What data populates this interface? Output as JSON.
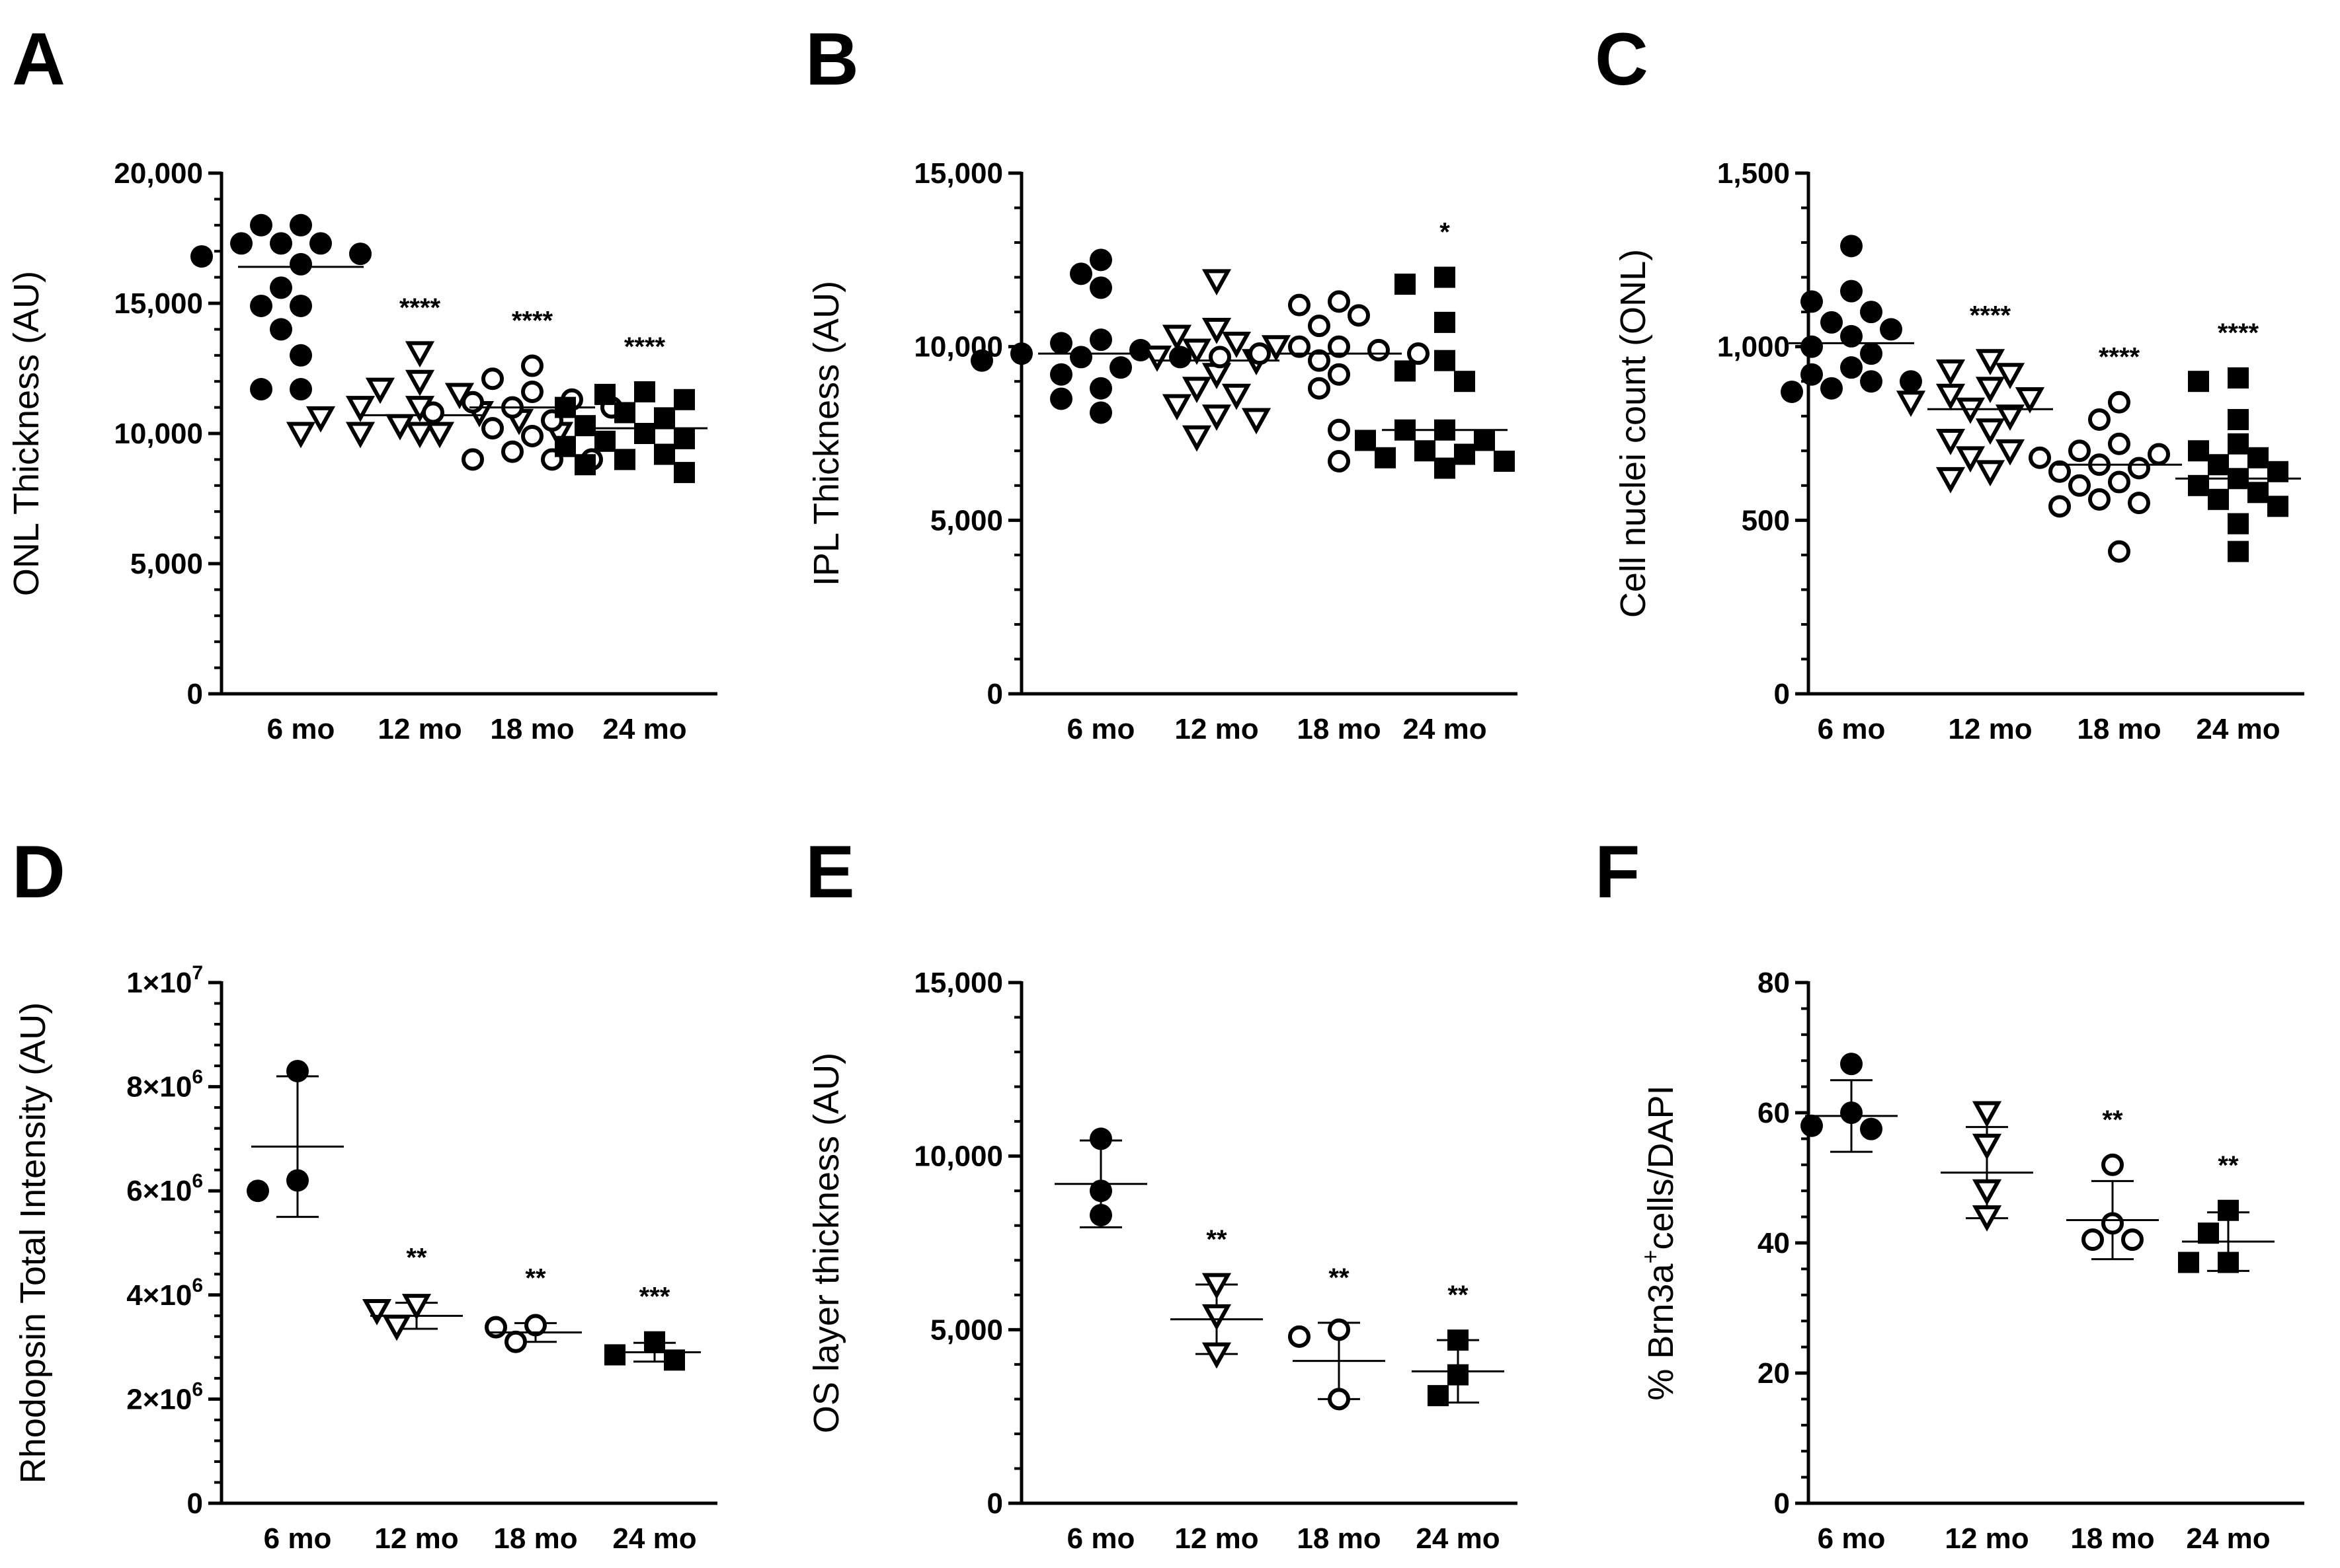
{
  "figure": {
    "marker_styles": {
      "6 mo": "filled-circle",
      "12 mo": "open-triangle-down",
      "18 mo": "open-circle",
      "24 mo": "filled-square"
    },
    "colors": {
      "ink": "#000000",
      "background": "#ffffff"
    }
  },
  "chart_data": [
    {
      "panel": "A",
      "type": "scatter",
      "ylabel": "ONL Thickness (AU)",
      "ylim": [
        0,
        20000
      ],
      "yticks": [
        0,
        5000,
        10000,
        15000,
        20000
      ],
      "ytick_labels": [
        "0",
        "5,000",
        "10,000",
        "15,000",
        "20,000"
      ],
      "categories": [
        "6 mo",
        "12 mo",
        "18 mo",
        "24 mo"
      ],
      "groups": [
        {
          "category": "6 mo",
          "marker": "filled-circle",
          "mean": 16400,
          "significance": "",
          "values": [
            18000,
            18000,
            17300,
            17300,
            17300,
            16900,
            16800,
            16500,
            15600,
            14900,
            14900,
            14000,
            13000,
            11700,
            11700
          ]
        },
        {
          "category": "12 mo",
          "marker": "open-triangle-down",
          "mean": 10700,
          "significance": "****",
          "values": [
            13100,
            12000,
            11700,
            11500,
            11000,
            11000,
            10800,
            10600,
            10500,
            10300,
            10000,
            10000,
            10000,
            10000,
            10000
          ]
        },
        {
          "category": "18 mo",
          "marker": "open-circle",
          "mean": 11000,
          "significance": "****",
          "values": [
            12600,
            12100,
            11600,
            11300,
            11200,
            11000,
            11000,
            10800,
            10500,
            10200,
            9900,
            9300,
            9000,
            9000,
            9000
          ]
        },
        {
          "category": "24 mo",
          "marker": "filled-square",
          "mean": 10200,
          "significance": "****",
          "values": [
            11600,
            11500,
            11300,
            11000,
            10800,
            10600,
            10300,
            10000,
            9800,
            9700,
            9500,
            9200,
            9000,
            8800,
            8500
          ]
        }
      ]
    },
    {
      "panel": "B",
      "type": "scatter",
      "ylabel": "IPL Thickness (AU)",
      "ylim": [
        0,
        15000
      ],
      "yticks": [
        0,
        5000,
        10000,
        15000
      ],
      "ytick_labels": [
        "0",
        "5,000",
        "10,000",
        "15,000"
      ],
      "categories": [
        "6 mo",
        "12 mo",
        "18 mo",
        "24 mo"
      ],
      "groups": [
        {
          "category": "6 mo",
          "marker": "filled-circle",
          "mean": 9800,
          "significance": "",
          "values": [
            12500,
            12100,
            11700,
            10200,
            10100,
            9900,
            9800,
            9700,
            9700,
            9600,
            9400,
            9200,
            8800,
            8500,
            8100
          ]
        },
        {
          "category": "12 mo",
          "marker": "open-triangle-down",
          "mean": 9600,
          "significance": "",
          "values": [
            11900,
            10500,
            10300,
            10100,
            10000,
            9900,
            9700,
            9600,
            9200,
            8800,
            8600,
            8300,
            8000,
            7900,
            7400
          ]
        },
        {
          "category": "18 mo",
          "marker": "open-circle",
          "mean": 9800,
          "significance": "",
          "values": [
            11300,
            11200,
            10900,
            10600,
            10000,
            10000,
            9900,
            9800,
            9800,
            9700,
            9600,
            9200,
            8800,
            7600,
            6700
          ]
        },
        {
          "category": "24 mo",
          "marker": "filled-square",
          "mean": 7600,
          "significance": "*",
          "values": [
            12000,
            11800,
            10700,
            9600,
            9300,
            9000,
            7600,
            7600,
            7300,
            7300,
            7000,
            6900,
            6800,
            6700,
            6500
          ]
        }
      ]
    },
    {
      "panel": "C",
      "type": "scatter",
      "ylabel": "Cell nuclei count (ONL)",
      "ylim": [
        0,
        1500
      ],
      "yticks": [
        0,
        500,
        1000,
        1500
      ],
      "ytick_labels": [
        "0",
        "500",
        "1,000",
        "1,500"
      ],
      "categories": [
        "6 mo",
        "12 mo",
        "18 mo",
        "24 mo"
      ],
      "groups": [
        {
          "category": "6 mo",
          "marker": "filled-circle",
          "mean": 1010,
          "significance": "",
          "values": [
            1290,
            1160,
            1130,
            1100,
            1070,
            1050,
            1030,
            1000,
            980,
            940,
            920,
            900,
            900,
            880,
            870
          ]
        },
        {
          "category": "12 mo",
          "marker": "open-triangle-down",
          "mean": 820,
          "significance": "****",
          "values": [
            960,
            930,
            920,
            880,
            860,
            850,
            840,
            820,
            800,
            760,
            730,
            700,
            680,
            640,
            620
          ]
        },
        {
          "category": "18 mo",
          "marker": "open-circle",
          "mean": 660,
          "significance": "****",
          "values": [
            840,
            790,
            720,
            700,
            690,
            680,
            660,
            650,
            640,
            610,
            600,
            560,
            550,
            540,
            410
          ]
        },
        {
          "category": "24 mo",
          "marker": "filled-square",
          "mean": 620,
          "significance": "****",
          "values": [
            910,
            900,
            790,
            720,
            700,
            680,
            660,
            640,
            620,
            600,
            580,
            560,
            540,
            490,
            410
          ]
        }
      ]
    },
    {
      "panel": "D",
      "type": "scatter",
      "ylabel": "Rhodopsin Total Intensity (AU)",
      "ylim": [
        0,
        10000000
      ],
      "yticks": [
        0,
        2000000,
        4000000,
        6000000,
        8000000,
        10000000
      ],
      "ytick_labels": [
        {
          "base": "0",
          "exp": ""
        },
        {
          "base": "2×10",
          "exp": "6"
        },
        {
          "base": "4×10",
          "exp": "6"
        },
        {
          "base": "6×10",
          "exp": "6"
        },
        {
          "base": "8×10",
          "exp": "6"
        },
        {
          "base": "1×10",
          "exp": "7"
        }
      ],
      "categories": [
        "6 mo",
        "12 mo",
        "18 mo",
        "24 mo"
      ],
      "groups": [
        {
          "category": "6 mo",
          "marker": "filled-circle",
          "mean": 6850000,
          "sd": 1350000,
          "significance": "",
          "values": [
            8300000,
            6200000,
            6000000
          ]
        },
        {
          "category": "12 mo",
          "marker": "open-triangle-down",
          "mean": 3600000,
          "sd": 250000,
          "significance": "**",
          "values": [
            3800000,
            3700000,
            3400000
          ]
        },
        {
          "category": "18 mo",
          "marker": "open-circle",
          "mean": 3280000,
          "sd": 180000,
          "significance": "**",
          "values": [
            3420000,
            3380000,
            3100000
          ]
        },
        {
          "category": "24 mo",
          "marker": "filled-square",
          "mean": 2900000,
          "sd": 180000,
          "significance": "***",
          "values": [
            3100000,
            2850000,
            2750000
          ]
        }
      ]
    },
    {
      "panel": "E",
      "type": "scatter",
      "ylabel": "OS layer thickness (AU)",
      "ylim": [
        0,
        15000
      ],
      "yticks": [
        0,
        5000,
        10000,
        15000
      ],
      "ytick_labels": [
        "0",
        "5,000",
        "10,000",
        "15,000"
      ],
      "categories": [
        "6 mo",
        "12 mo",
        "18 mo",
        "24 mo"
      ],
      "groups": [
        {
          "category": "6 mo",
          "marker": "filled-circle",
          "mean": 9200,
          "sd": 1250,
          "significance": "",
          "values": [
            10500,
            9000,
            8300
          ]
        },
        {
          "category": "12 mo",
          "marker": "open-triangle-down",
          "mean": 5300,
          "sd": 1000,
          "significance": "**",
          "values": [
            6300,
            5400,
            4300
          ]
        },
        {
          "category": "18 mo",
          "marker": "open-circle",
          "mean": 4100,
          "sd": 1100,
          "significance": "**",
          "values": [
            5000,
            4800,
            3000
          ]
        },
        {
          "category": "24 mo",
          "marker": "filled-square",
          "mean": 3800,
          "sd": 900,
          "significance": "**",
          "values": [
            4700,
            3700,
            3100
          ]
        }
      ]
    },
    {
      "panel": "F",
      "type": "scatter",
      "ylabel": {
        "prefix": "% Brn3a",
        "sup": "+",
        "suffix": "cells/DAPI"
      },
      "ylim": [
        0,
        80
      ],
      "yticks": [
        0,
        20,
        40,
        60,
        80
      ],
      "ytick_labels": [
        "0",
        "20",
        "40",
        "60",
        "80"
      ],
      "categories": [
        "6 mo",
        "12 mo",
        "18 mo",
        "24 mo"
      ],
      "groups": [
        {
          "category": "6 mo",
          "marker": "filled-circle",
          "mean": 59.5,
          "sd": 5.5,
          "significance": "",
          "values": [
            67.5,
            60,
            58,
            57.5
          ]
        },
        {
          "category": "12 mo",
          "marker": "open-triangle-down",
          "mean": 50.8,
          "sd": 7,
          "significance": "",
          "values": [
            60,
            55,
            48,
            44
          ]
        },
        {
          "category": "18 mo",
          "marker": "open-circle",
          "mean": 43.5,
          "sd": 6,
          "significance": "**",
          "values": [
            52,
            43,
            40.5,
            40.5
          ]
        },
        {
          "category": "24 mo",
          "marker": "filled-square",
          "mean": 40.2,
          "sd": 4.5,
          "significance": "**",
          "values": [
            45,
            41.5,
            37,
            37
          ]
        }
      ]
    }
  ]
}
